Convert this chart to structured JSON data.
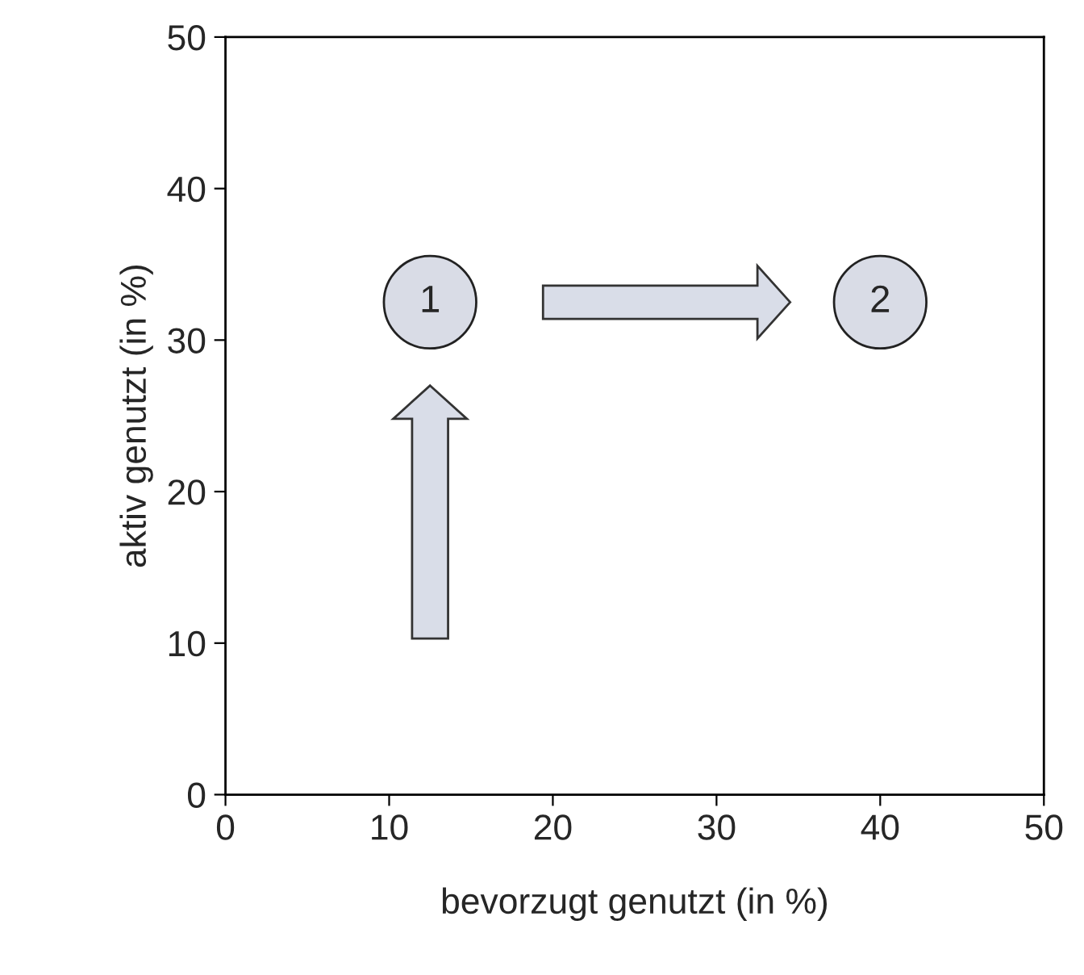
{
  "chart_data": {
    "type": "scatter",
    "xlabel": "bevorzugt genutzt (in %)",
    "ylabel": "aktiv genutzt (in %)",
    "x": [
      12.5,
      40
    ],
    "series": [
      {
        "color": "#d9dce6",
        "values": [
          32.5,
          32.5
        ]
      }
    ],
    "xlim": [
      0,
      50
    ],
    "ylim": [
      0,
      50
    ],
    "xticks": [
      0,
      10,
      20,
      30,
      40,
      50
    ],
    "yticks": [
      0,
      10,
      20,
      30,
      40,
      50
    ],
    "grid": false,
    "legend": false,
    "annotations": [
      {
        "text": "1",
        "x": 12.5,
        "y": 32.5
      },
      {
        "text": "2",
        "x": 40,
        "y": 32.5
      }
    ]
  }
}
